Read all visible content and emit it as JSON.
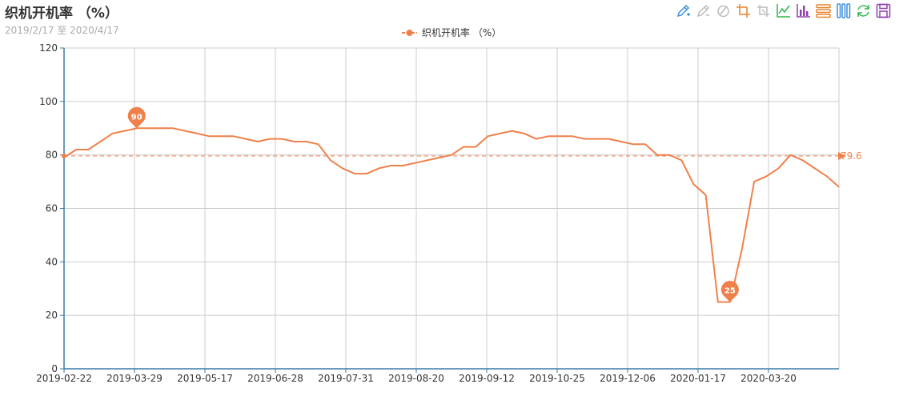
{
  "title": "织机开机率 （%）",
  "subtitle": "2019/2/17 至 2020/4/17",
  "colors": {
    "series": "#f0804a",
    "axis": "#3a7ca5",
    "grid": "#cccccc"
  },
  "toolbox": [
    {
      "name": "pen-icon",
      "color": "#3a8fd9"
    },
    {
      "name": "eraser-icon",
      "color": "#bbbbbb"
    },
    {
      "name": "clear-icon",
      "color": "#bbbbbb"
    },
    {
      "name": "zoom-icon",
      "color": "#e8842f"
    },
    {
      "name": "zoom-reset-icon",
      "color": "#bbbbbb"
    },
    {
      "name": "line-chart-icon",
      "color": "#2db64a"
    },
    {
      "name": "bar-chart-icon",
      "color": "#8e3fb0"
    },
    {
      "name": "stack-icon",
      "color": "#e8842f"
    },
    {
      "name": "tiled-icon",
      "color": "#3a8fd9"
    },
    {
      "name": "restore-icon",
      "color": "#2db64a"
    },
    {
      "name": "save-image-icon",
      "color": "#8e3fb0"
    }
  ],
  "chart_data": {
    "type": "line",
    "ylim": [
      0,
      120
    ],
    "yticks": [
      0,
      20,
      40,
      60,
      80,
      100,
      120
    ],
    "xticks": [
      "2019-02-22",
      "2019-03-29",
      "2019-05-17",
      "2019-06-28",
      "2019-07-31",
      "2019-08-20",
      "2019-09-12",
      "2019-10-25",
      "2019-12-06",
      "2020-01-17",
      "2020-03-20"
    ],
    "grid": true,
    "legend_position": "top-center",
    "series": [
      {
        "name": "织机开机率 （%）",
        "values": [
          79,
          82,
          82,
          85,
          88,
          89,
          90,
          90,
          90,
          90,
          89,
          88,
          87,
          87,
          87,
          86,
          85,
          86,
          86,
          85,
          85,
          84,
          78,
          75,
          73,
          73,
          75,
          76,
          76,
          77,
          78,
          79,
          80,
          83,
          83,
          87,
          88,
          89,
          88,
          86,
          87,
          87,
          87,
          86,
          86,
          86,
          85,
          84,
          84,
          80,
          80,
          78,
          69,
          65,
          25,
          25,
          45,
          70,
          72,
          75,
          80,
          78,
          75,
          72,
          68
        ]
      }
    ],
    "mark_points": [
      {
        "label": "90",
        "index": 6,
        "value": 90
      },
      {
        "label": "25",
        "index": 55,
        "value": 25
      }
    ],
    "mark_line": {
      "label": "79.6",
      "value": 79.6
    }
  }
}
